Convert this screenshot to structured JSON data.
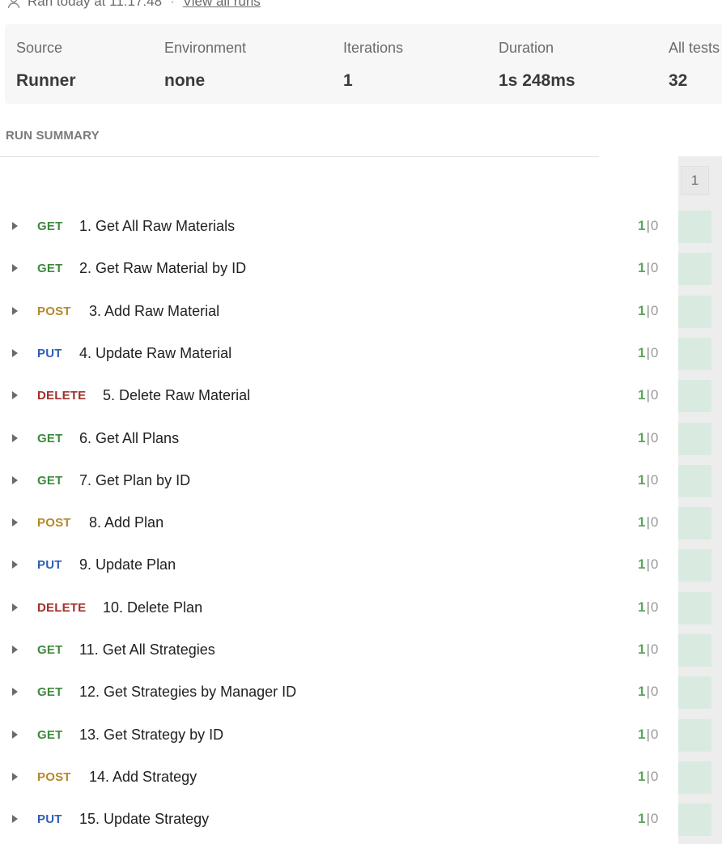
{
  "run_info": {
    "ran_text": "Ran today at 11:17:48",
    "separator": "·",
    "view_all_label": "View all runs"
  },
  "stats": {
    "source": {
      "label": "Source",
      "value": "Runner"
    },
    "environment": {
      "label": "Environment",
      "value": "none"
    },
    "iterations": {
      "label": "Iterations",
      "value": "1"
    },
    "duration": {
      "label": "Duration",
      "value": "1s 248ms"
    },
    "all_tests": {
      "label": "All tests",
      "value": "32"
    }
  },
  "section_title": "RUN SUMMARY",
  "iteration_header": "1",
  "colors": {
    "GET": "#3e8a3e",
    "POST": "#b5892a",
    "PUT": "#2f5fb3",
    "DELETE": "#a3312b",
    "pass": "#5aa65a",
    "pass_cell": "#d9ebe0"
  },
  "requests": [
    {
      "method": "GET",
      "name": "1. Get All Raw Materials",
      "passed": "1",
      "failed": "0"
    },
    {
      "method": "GET",
      "name": "2. Get Raw Material by ID",
      "passed": "1",
      "failed": "0"
    },
    {
      "method": "POST",
      "name": "3. Add Raw Material",
      "passed": "1",
      "failed": "0"
    },
    {
      "method": "PUT",
      "name": "4. Update Raw Material",
      "passed": "1",
      "failed": "0"
    },
    {
      "method": "DELETE",
      "name": "5. Delete Raw Material",
      "passed": "1",
      "failed": "0"
    },
    {
      "method": "GET",
      "name": "6. Get All Plans",
      "passed": "1",
      "failed": "0"
    },
    {
      "method": "GET",
      "name": "7. Get Plan by ID",
      "passed": "1",
      "failed": "0"
    },
    {
      "method": "POST",
      "name": "8. Add Plan",
      "passed": "1",
      "failed": "0"
    },
    {
      "method": "PUT",
      "name": "9. Update Plan",
      "passed": "1",
      "failed": "0"
    },
    {
      "method": "DELETE",
      "name": "10. Delete Plan",
      "passed": "1",
      "failed": "0"
    },
    {
      "method": "GET",
      "name": "11. Get All Strategies",
      "passed": "1",
      "failed": "0"
    },
    {
      "method": "GET",
      "name": "12. Get Strategies by Manager ID",
      "passed": "1",
      "failed": "0"
    },
    {
      "method": "GET",
      "name": "13. Get Strategy by ID",
      "passed": "1",
      "failed": "0"
    },
    {
      "method": "POST",
      "name": "14. Add Strategy",
      "passed": "1",
      "failed": "0"
    },
    {
      "method": "PUT",
      "name": "15. Update Strategy",
      "passed": "1",
      "failed": "0"
    }
  ]
}
